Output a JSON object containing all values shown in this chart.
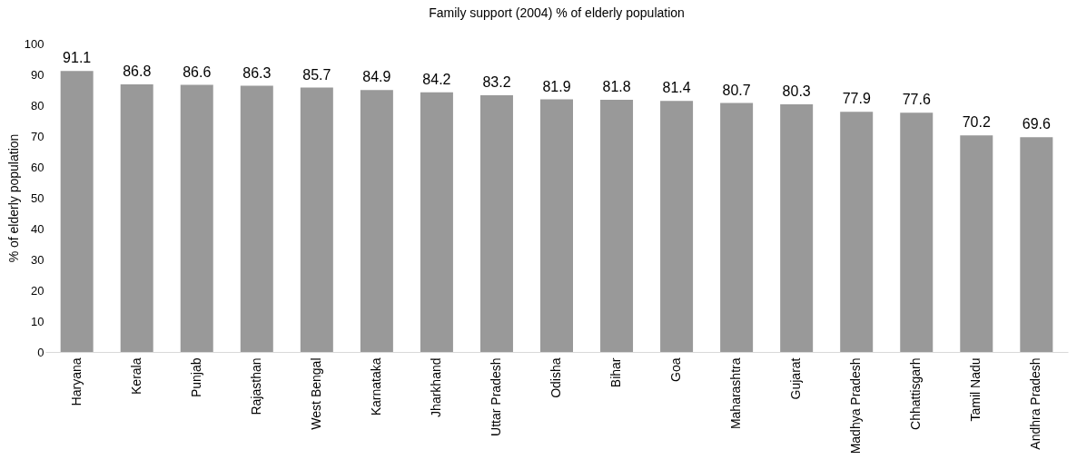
{
  "chart_data": {
    "type": "bar",
    "title": "Family support (2004) % of elderly population",
    "ylabel": "% of elderly population",
    "categories": [
      "Haryana",
      "Kerala",
      "Punjab",
      "Rajasthan",
      "West Bengal",
      "Karnataka",
      "Jharkhand",
      "Uttar Pradesh",
      "Odisha",
      "Bihar",
      "Goa",
      "Maharashtra",
      "Gujarat",
      "Madhya Pradesh",
      "Chhattisgarh",
      "Tamil Nadu",
      "Andhra Pradesh"
    ],
    "values": [
      91.1,
      86.8,
      86.6,
      86.3,
      85.7,
      84.9,
      84.2,
      83.2,
      81.9,
      81.8,
      81.4,
      80.7,
      80.3,
      77.9,
      77.6,
      70.2,
      69.6
    ],
    "color": "#999999",
    "ylim": [
      0,
      100
    ],
    "yticks": [
      0,
      10,
      20,
      30,
      40,
      50,
      60,
      70,
      80,
      90,
      100
    ],
    "grid": false,
    "data_labels": true
  }
}
